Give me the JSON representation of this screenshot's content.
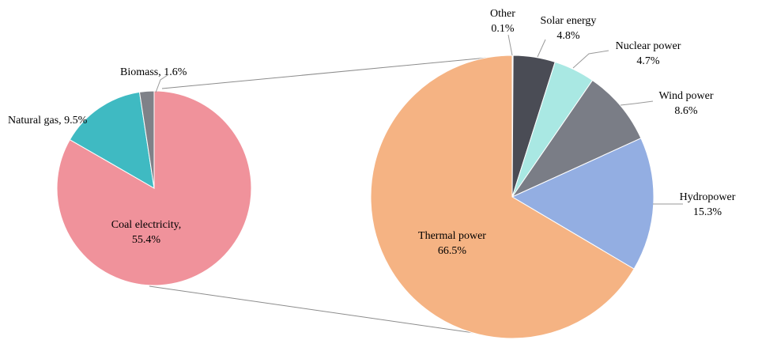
{
  "chart_data": [
    {
      "type": "pie",
      "title": "",
      "slices": [
        {
          "name": "Coal electricity",
          "value": 55.4,
          "label_line1": "Coal electricity,",
          "label_line2": "55.4%",
          "color": "#F0929B"
        },
        {
          "name": "Natural gas",
          "value": 9.5,
          "label_line1": "Natural gas, 9.5%",
          "label_line2": "",
          "color": "#3FBAC2"
        },
        {
          "name": "Biomass",
          "value": 1.6,
          "label_line1": "Biomass, 1.6%",
          "label_line2": "",
          "color": "#7F8188"
        }
      ]
    },
    {
      "type": "pie",
      "title": "",
      "slices": [
        {
          "name": "Other",
          "value": 0.1,
          "label_line1": "Other",
          "label_line2": "0.1%",
          "color": "#2E8C8C"
        },
        {
          "name": "Solar energy",
          "value": 4.8,
          "label_line1": "Solar energy",
          "label_line2": "4.8%",
          "color": "#4A4C55"
        },
        {
          "name": "Nuclear power",
          "value": 4.7,
          "label_line1": "Nuclear power",
          "label_line2": "4.7%",
          "color": "#A9E8E3"
        },
        {
          "name": "Wind power",
          "value": 8.6,
          "label_line1": "Wind power",
          "label_line2": "8.6%",
          "color": "#7A7D86"
        },
        {
          "name": "Hydropower",
          "value": 15.3,
          "label_line1": "Hydropower",
          "label_line2": "15.3%",
          "color": "#93AEE2"
        },
        {
          "name": "Thermal power",
          "value": 66.5,
          "label_line1": "Thermal power",
          "label_line2": "66.5%",
          "color": "#F5B383"
        }
      ]
    }
  ]
}
